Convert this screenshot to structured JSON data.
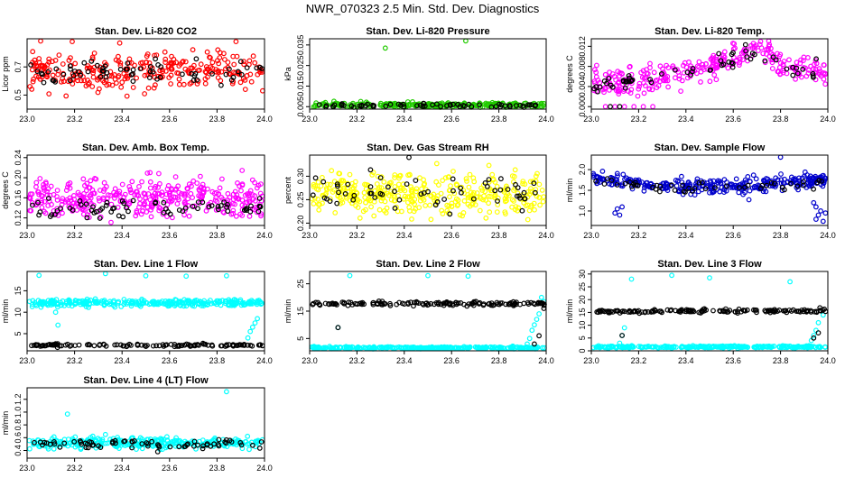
{
  "title": "NWR_070323  2.5 Min. Std. Dev. Diagnostics",
  "colors": {
    "red": "#ff0000",
    "green": "#22cc00",
    "magenta": "#ff00ff",
    "yellow": "#ffff00",
    "blue": "#0000cc",
    "cyan": "#00ffff",
    "black": "#000000"
  },
  "chart_data": [
    {
      "type": "scatter",
      "title": "Stan. Dev. Li-820 CO2",
      "ylabel": "Licor ppm",
      "xlim": [
        23.0,
        24.0
      ],
      "ylim": [
        0.4,
        0.9
      ],
      "xticks": [
        "23.0",
        "23.2",
        "23.4",
        "23.6",
        "23.8",
        "24.0"
      ],
      "yticks": [
        "0.5",
        "0.7"
      ],
      "series": [
        {
          "color": "red",
          "n": 280,
          "mean": 0.67,
          "sd": 0.07,
          "seed": 11,
          "x": [
            23.15,
            23.19,
            23.39,
            23.64,
            23.88
          ],
          "y": [
            0.41,
            0.88,
            0.87,
            0.89,
            0.88
          ]
        },
        {
          "color": "black",
          "n": 70,
          "mean": 0.66,
          "sd": 0.05,
          "seed": 12
        }
      ]
    },
    {
      "type": "scatter",
      "title": "Stan. Dev. Li-820 Pressure",
      "ylabel": "kPa",
      "xlim": [
        23.0,
        24.0
      ],
      "ylim": [
        0.0038,
        0.038
      ],
      "xticks": [
        "23.0",
        "23.2",
        "23.4",
        "23.6",
        "23.8",
        "24.0"
      ],
      "yticks": [
        "0.005",
        "0.015",
        "0.025",
        "0.035"
      ],
      "series": [
        {
          "color": "green",
          "n": 280,
          "mean": 0.0058,
          "sd": 0.0006,
          "seed": 21,
          "x": [
            23.32,
            23.66,
            24.0
          ],
          "y": [
            0.0335,
            0.037,
            0.0335
          ]
        },
        {
          "color": "black",
          "n": 70,
          "mean": 0.0055,
          "sd": 0.0005,
          "seed": 22
        }
      ]
    },
    {
      "type": "scatter",
      "title": "Stan. Dev. Li-820 Temp.",
      "ylabel": "degrees C",
      "xlim": [
        23.0,
        24.0
      ],
      "ylim": [
        -0.0005,
        0.0135
      ],
      "xticks": [
        "23.0",
        "23.2",
        "23.4",
        "23.6",
        "23.8",
        "24.0"
      ],
      "yticks": [
        "0.000",
        "0.004",
        "0.008",
        "0.012"
      ],
      "series": [
        {
          "color": "magenta",
          "n": 300,
          "trend": [
            [
              23.0,
              0.005
            ],
            [
              23.1,
              0.0045
            ],
            [
              23.3,
              0.006
            ],
            [
              23.5,
              0.008
            ],
            [
              23.7,
              0.012
            ],
            [
              23.8,
              0.008
            ],
            [
              24.0,
              0.007
            ]
          ],
          "sd": 0.0014,
          "seed": 31,
          "x": [
            23.06,
            23.1,
            23.14,
            23.18,
            23.22,
            23.26
          ],
          "y": [
            0.0,
            0.0,
            0.0,
            0.0,
            0.0,
            0.0
          ]
        },
        {
          "color": "black",
          "n": 60,
          "trend": [
            [
              23.0,
              0.004
            ],
            [
              23.3,
              0.006
            ],
            [
              23.5,
              0.008
            ],
            [
              23.7,
              0.011
            ],
            [
              23.85,
              0.007
            ],
            [
              24.0,
              0.008
            ]
          ],
          "sd": 0.001,
          "seed": 32,
          "x": [
            23.08,
            23.12
          ],
          "y": [
            0.0,
            0.0
          ]
        }
      ]
    },
    {
      "type": "scatter",
      "title": "Stan. Dev. Amb. Box Temp.",
      "ylabel": "degrees C",
      "xlim": [
        23.0,
        24.0
      ],
      "ylim": [
        0.105,
        0.245
      ],
      "xticks": [
        "23.0",
        "23.2",
        "23.4",
        "23.6",
        "23.8",
        "24.0"
      ],
      "yticks": [
        "0.12",
        "0.16",
        "0.20",
        "0.24"
      ],
      "series": [
        {
          "color": "magenta",
          "n": 380,
          "mean": 0.158,
          "sd": 0.02,
          "seed": 41
        },
        {
          "color": "black",
          "n": 70,
          "mean": 0.14,
          "sd": 0.01,
          "seed": 42
        }
      ]
    },
    {
      "type": "scatter",
      "title": "Stan. Dev. Gas Stream RH",
      "ylabel": "percent",
      "xlim": [
        23.0,
        24.0
      ],
      "ylim": [
        0.195,
        0.345
      ],
      "xticks": [
        "23.0",
        "23.2",
        "23.4",
        "23.6",
        "23.8",
        "24.0"
      ],
      "yticks": [
        "0.20",
        "0.25",
        "0.30"
      ],
      "series": [
        {
          "color": "yellow",
          "n": 380,
          "mean": 0.262,
          "sd": 0.022,
          "seed": 51
        },
        {
          "color": "black",
          "n": 60,
          "mean": 0.265,
          "sd": 0.018,
          "seed": 52,
          "x": [
            23.42
          ],
          "y": [
            0.34
          ]
        }
      ]
    },
    {
      "type": "scatter",
      "title": "Stan. Dev. Sample Flow",
      "ylabel": "ml/min",
      "xlim": [
        23.0,
        24.0
      ],
      "ylim": [
        0.65,
        2.35
      ],
      "xticks": [
        "23.0",
        "23.2",
        "23.4",
        "23.6",
        "23.8",
        "24.0"
      ],
      "yticks": [
        "1.0",
        "1.5",
        "2.0"
      ],
      "series": [
        {
          "color": "blue",
          "n": 320,
          "trend": [
            [
              23.0,
              1.8
            ],
            [
              23.3,
              1.6
            ],
            [
              23.6,
              1.6
            ],
            [
              23.8,
              1.7
            ],
            [
              24.0,
              1.75
            ]
          ],
          "sd": 0.09,
          "seed": 61,
          "x": [
            23.1,
            23.11,
            23.12,
            23.13,
            23.95,
            23.96,
            23.97,
            23.98,
            23.99,
            23.94,
            23.95,
            23.8
          ],
          "y": [
            0.95,
            1.05,
            0.9,
            1.1,
            0.8,
            0.9,
            1.0,
            0.75,
            0.95,
            1.2,
            1.1,
            2.3
          ]
        },
        {
          "color": "black",
          "n": 50,
          "trend": [
            [
              23.0,
              1.75
            ],
            [
              23.3,
              1.55
            ],
            [
              23.6,
              1.55
            ],
            [
              24.0,
              1.7
            ]
          ],
          "sd": 0.06,
          "seed": 62
        }
      ]
    },
    {
      "type": "scatter",
      "title": "Stan. Dev. Line 1 Flow",
      "ylabel": "ml/min",
      "xlim": [
        23.0,
        24.0
      ],
      "ylim": [
        1.0,
        19.5
      ],
      "xticks": [
        "23.0",
        "23.2",
        "23.4",
        "23.6",
        "23.8",
        "24.0"
      ],
      "yticks": [
        "5",
        "10",
        "15"
      ],
      "series": [
        {
          "color": "cyan",
          "n": 300,
          "mean": 12.2,
          "sd": 0.4,
          "seed": 71,
          "x": [
            23.05,
            23.13,
            23.33,
            23.5,
            23.67,
            23.84,
            24.0,
            23.93,
            23.94,
            23.95,
            23.96,
            23.97,
            23.12
          ],
          "y": [
            18.6,
            7.0,
            19.0,
            18.5,
            18.4,
            18.5,
            18.6,
            4.0,
            5.5,
            6.5,
            7.5,
            8.5,
            10.0
          ]
        },
        {
          "color": "black",
          "n": 120,
          "mean": 2.3,
          "sd": 0.15,
          "seed": 72
        }
      ]
    },
    {
      "type": "scatter",
      "title": "Stan. Dev. Line 2 Flow",
      "ylabel": "ml/min",
      "xlim": [
        23.0,
        24.0
      ],
      "ylim": [
        0.5,
        29.5
      ],
      "xticks": [
        "23.0",
        "23.2",
        "23.4",
        "23.6",
        "23.8",
        "24.0"
      ],
      "yticks": [
        "5",
        "15",
        "25"
      ],
      "series": [
        {
          "color": "cyan",
          "n": 300,
          "mean": 1.6,
          "sd": 0.2,
          "seed": 81,
          "x": [
            23.0,
            23.17,
            23.5,
            23.67,
            24.0,
            23.92,
            23.93,
            23.94,
            23.95,
            23.96,
            23.97,
            23.98,
            23.99,
            23.12
          ],
          "y": [
            18.0,
            28.0,
            28.0,
            27.8,
            28.0,
            3.0,
            5.0,
            8.0,
            10.0,
            12.0,
            14.0,
            20.0,
            18.5,
            9.0
          ]
        },
        {
          "color": "black",
          "n": 150,
          "mean": 17.7,
          "sd": 0.35,
          "seed": 82,
          "x": [
            23.12,
            23.95,
            23.97,
            23.99
          ],
          "y": [
            9.0,
            3.0,
            6.0,
            16.0
          ]
        }
      ]
    },
    {
      "type": "scatter",
      "title": "Stan. Dev. Line 3 Flow",
      "ylabel": "ml/min",
      "xlim": [
        23.0,
        24.0
      ],
      "ylim": [
        0.0,
        31.0
      ],
      "xticks": [
        "23.0",
        "23.2",
        "23.4",
        "23.6",
        "23.8",
        "24.0"
      ],
      "yticks": [
        "0",
        "5",
        "10",
        "15",
        "20",
        "25",
        "30"
      ],
      "series": [
        {
          "color": "cyan",
          "n": 300,
          "mean": 1.5,
          "sd": 0.2,
          "seed": 91,
          "x": [
            23.0,
            23.17,
            23.34,
            23.5,
            23.84,
            24.0,
            23.12,
            23.13,
            23.14,
            23.92,
            23.93,
            23.94,
            23.95,
            23.96,
            23.98
          ],
          "y": [
            14.5,
            28.0,
            29.5,
            28.5,
            27.0,
            28.5,
            3.0,
            6.0,
            9.0,
            2.0,
            4.0,
            6.0,
            8.0,
            11.0,
            14.0
          ]
        },
        {
          "color": "black",
          "n": 150,
          "mean": 15.5,
          "sd": 0.35,
          "seed": 92,
          "x": [
            23.13,
            23.94,
            23.96
          ],
          "y": [
            6.0,
            5.0,
            7.0
          ]
        }
      ]
    },
    {
      "type": "scatter",
      "title": "Stan. Dev. Line 4 (LT) Flow",
      "ylabel": "ml/min",
      "xlim": [
        23.0,
        24.0
      ],
      "ylim": [
        0.28,
        1.38
      ],
      "xticks": [
        "23.0",
        "23.2",
        "23.4",
        "23.6",
        "23.8",
        "24.0"
      ],
      "yticks": [
        "0.4",
        "0.6",
        "0.8",
        "1.0",
        "1.2"
      ],
      "series": [
        {
          "color": "cyan",
          "n": 320,
          "mean": 0.52,
          "sd": 0.04,
          "seed": 101,
          "x": [
            23.17,
            23.33,
            23.84,
            23.46
          ],
          "y": [
            0.97,
            0.65,
            1.32,
            0.42
          ]
        },
        {
          "color": "black",
          "n": 70,
          "mean": 0.5,
          "sd": 0.03,
          "seed": 102,
          "x": [
            23.55
          ],
          "y": [
            0.38
          ]
        }
      ]
    }
  ]
}
